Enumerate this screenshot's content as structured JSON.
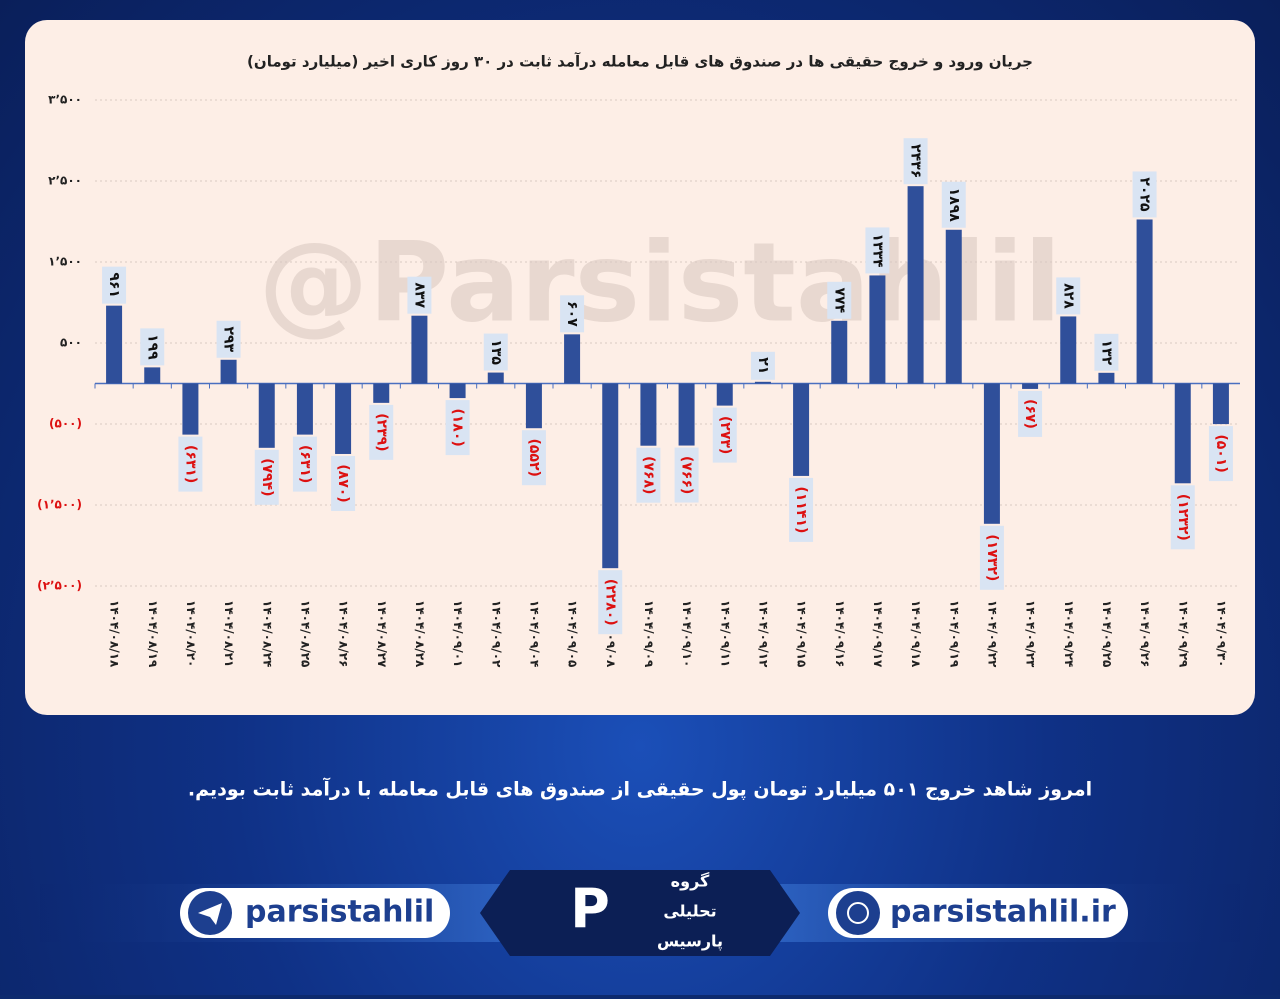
{
  "chart_data": {
    "type": "bar",
    "title": "جریان ورود و خروج حقیقی ها در صندوق های قابل معامله درآمد ثابت در ۳۰ روز کاری اخیر (میلیارد تومان)",
    "watermark": "@Parsistahlil",
    "categories": [
      "۱۴۰۴/۰۸/۱۸",
      "۱۴۰۴/۰۸/۱۹",
      "۱۴۰۴/۰۸/۲۰",
      "۱۴۰۴/۰۸/۲۱",
      "۱۴۰۴/۰۸/۲۴",
      "۱۴۰۴/۰۸/۲۵",
      "۱۴۰۴/۰۸/۲۶",
      "۱۴۰۴/۰۸/۲۷",
      "۱۴۰۴/۰۸/۲۸",
      "۱۴۰۴/۰۹/۰۱",
      "۱۴۰۴/۰۹/۰۲",
      "۱۴۰۴/۰۹/۰۴",
      "۱۴۰۴/۰۹/۰۵",
      "۱۴۰۴/۰۹/۰۸",
      "۱۴۰۴/۰۹/۰۹",
      "۱۴۰۴/۰۹/۱۰",
      "۱۴۰۴/۰۹/۱۱",
      "۱۴۰۴/۰۹/۱۲",
      "۱۴۰۴/۰۹/۱۵",
      "۱۴۰۴/۰۹/۱۶",
      "۱۴۰۴/۰۹/۱۷",
      "۱۴۰۴/۰۹/۱۸",
      "۱۴۰۴/۰۹/۱۹",
      "۱۴۰۴/۰۹/۲۲",
      "۱۴۰۴/۰۹/۲۳",
      "۱۴۰۴/۰۹/۲۴",
      "۱۴۰۴/۰۹/۲۵",
      "۱۴۰۴/۰۹/۲۶",
      "۱۴۰۴/۰۹/۲۹",
      "۱۴۰۴/۰۹/۳۰"
    ],
    "values": [
      961,
      199,
      -631,
      293,
      -794,
      -631,
      -870,
      -239,
      837,
      -180,
      135,
      -552,
      607,
      -2280,
      -768,
      -766,
      -273,
      21,
      -1141,
      774,
      1334,
      2436,
      1898,
      -1732,
      -67,
      828,
      132,
      2025,
      -1232,
      -501
    ],
    "value_labels": [
      "۹۶۱",
      "۱۹۹",
      "(۶۳۱)",
      "۲۹۳",
      "(۷۹۴)",
      "(۶۳۱)",
      "(۸۷۰)",
      "(۲۳۹)",
      "۸۳۷",
      "(۱۸۰)",
      "۱۳۵",
      "(۵۵۲)",
      "۶۰۷",
      "(۲۲۸۰)",
      "(۷۶۸)",
      "(۷۶۶)",
      "(۲۷۳)",
      "۲۱",
      "(۱۱۴۱)",
      "۷۷۴",
      "۱۳۳۴",
      "۲۴۳۶",
      "۱۸۹۸",
      "(۱۷۳۲)",
      "(۶۷)",
      "۸۲۸",
      "۱۳۲",
      "۲۰۲۵",
      "(۱۲۳۲)",
      "(۵۰۱)"
    ],
    "color": "#2f4f9a",
    "ylim": [
      -2500,
      3500
    ],
    "yticks": [
      {
        "value": 3500,
        "label": "۳٬۵۰۰"
      },
      {
        "value": 2500,
        "label": "۲٬۵۰۰"
      },
      {
        "value": 1500,
        "label": "۱٬۵۰۰"
      },
      {
        "value": 500,
        "label": "۵۰۰"
      },
      {
        "value": -500,
        "label": "(۵۰۰)"
      },
      {
        "value": -1500,
        "label": "(۱٬۵۰۰)"
      },
      {
        "value": -2500,
        "label": "(۲٬۵۰۰)"
      }
    ],
    "grid": true
  },
  "caption": "امروز شاهد خروج ۵۰۱ میلیارد تومان پول حقیقی از صندوق های قابل معامله با درآمد ثابت بودیم.",
  "footer": {
    "telegram": "parsistahlil",
    "website": "parsistahlil.ir",
    "logo": [
      "گروه",
      "تحلیلی",
      "پارسیس"
    ]
  }
}
